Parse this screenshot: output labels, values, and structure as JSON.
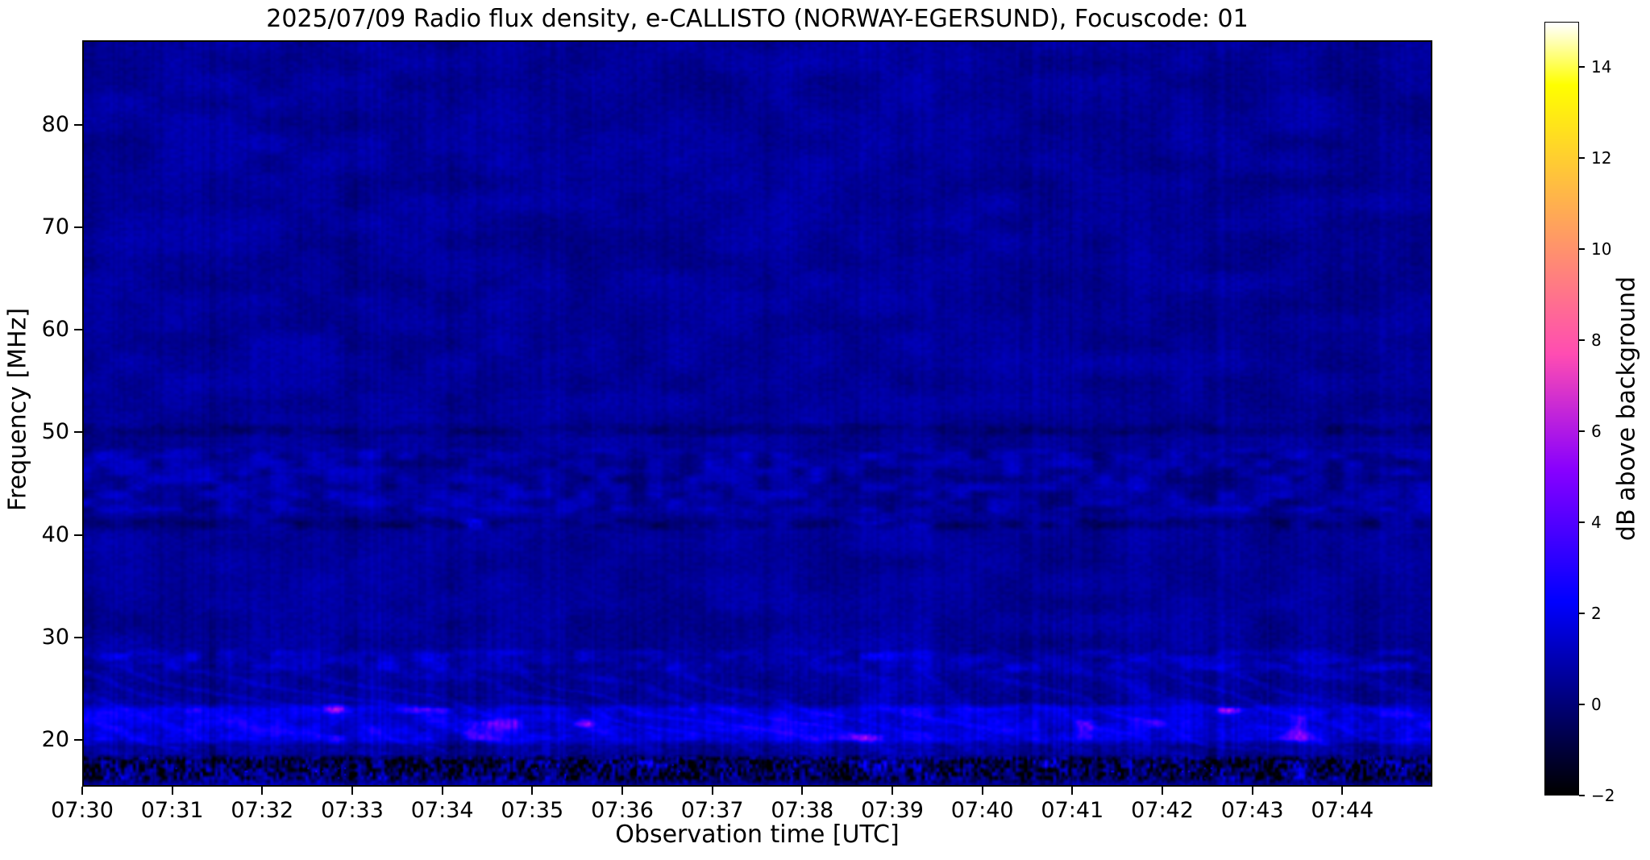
{
  "chart_data": {
    "type": "heatmap",
    "title": "2025/07/09  Radio flux density, e-CALLISTO (NORWAY-EGERSUND), Focuscode: 01",
    "xlabel": "Observation time [UTC]",
    "ylabel": "Frequency [MHz]",
    "colorbar_label": "dB above background",
    "colormap": "gnuplot2",
    "x_ticks": [
      {
        "label": "07:30",
        "minute": 0
      },
      {
        "label": "07:31",
        "minute": 1
      },
      {
        "label": "07:32",
        "minute": 2
      },
      {
        "label": "07:33",
        "minute": 3
      },
      {
        "label": "07:34",
        "minute": 4
      },
      {
        "label": "07:35",
        "minute": 5
      },
      {
        "label": "07:36",
        "minute": 6
      },
      {
        "label": "07:37",
        "minute": 7
      },
      {
        "label": "07:38",
        "minute": 8
      },
      {
        "label": "07:39",
        "minute": 9
      },
      {
        "label": "07:40",
        "minute": 10
      },
      {
        "label": "07:41",
        "minute": 11
      },
      {
        "label": "07:42",
        "minute": 12
      },
      {
        "label": "07:43",
        "minute": 13
      },
      {
        "label": "07:44",
        "minute": 14
      }
    ],
    "y_ticks": [
      {
        "label": "80",
        "value": 80
      },
      {
        "label": "70",
        "value": 70
      },
      {
        "label": "60",
        "value": 60
      },
      {
        "label": "50",
        "value": 50
      },
      {
        "label": "40",
        "value": 40
      },
      {
        "label": "30",
        "value": 30
      },
      {
        "label": "20",
        "value": 20
      }
    ],
    "colorbar_ticks": [
      {
        "label": "14",
        "value": 14
      },
      {
        "label": "12",
        "value": 12
      },
      {
        "label": "10",
        "value": 10
      },
      {
        "label": "8",
        "value": 8
      },
      {
        "label": "6",
        "value": 6
      },
      {
        "label": "4",
        "value": 4
      },
      {
        "label": "2",
        "value": 2
      },
      {
        "label": "0",
        "value": 0
      },
      {
        "label": "−2",
        "value": -2
      }
    ],
    "colorbar_range_db": [
      -2,
      15
    ],
    "time_range_utc": [
      "07:30",
      "07:45"
    ],
    "time_span_minutes": 15,
    "freq_range_mhz": [
      15.4,
      88.3
    ],
    "background_level_db": 0.55,
    "features": [
      {
        "name": "dark-band-50mhz",
        "f_lo": 49.4,
        "f_hi": 51.0,
        "boost": -0.5,
        "mottle": 0.5,
        "blobs": 0,
        "chaos": 0,
        "seed": 3
      },
      {
        "name": "wavy-band-42-48mhz",
        "f_lo": 41.8,
        "f_hi": 48.6,
        "boost": 0.1,
        "mottle": 0.9,
        "blobs": 0,
        "chaos": 0,
        "seed": 17
      },
      {
        "name": "dark-band-41mhz",
        "f_lo": 40.2,
        "f_hi": 41.8,
        "boost": -0.55,
        "mottle": 0.7,
        "blobs": 1.6,
        "chaos": 0,
        "seed": 29
      },
      {
        "name": "mottled-band-28mhz",
        "f_lo": 26.2,
        "f_hi": 28.9,
        "boost": 0.3,
        "mottle": 0.8,
        "blobs": 1.2,
        "chaos": 0,
        "seed": 41
      },
      {
        "name": "active-band-21mhz",
        "f_lo": 19.2,
        "f_hi": 23.4,
        "boost": 1.1,
        "mottle": 0.6,
        "blobs": 4.2,
        "chaos": 0,
        "seed": 53
      },
      {
        "name": "noisy-band-bottom",
        "f_lo": 15.4,
        "f_hi": 18.4,
        "boost": -0.9,
        "mottle": 0,
        "blobs": 2.0,
        "chaos": 2.2,
        "seed": 67
      }
    ],
    "render": {
      "noise_seed": 20250709,
      "streak_band_mhz": [
        17.5,
        28.0
      ],
      "streak_amp_db": 0.55,
      "stripe_amp_db": 0.75,
      "grain_amp_db": 0.45,
      "mottle_amp_db": 0.7
    }
  }
}
